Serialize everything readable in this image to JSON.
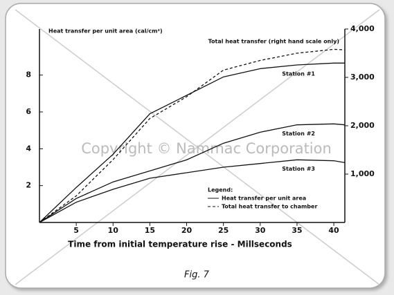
{
  "chart_data": {
    "type": "line",
    "y_label": "Heat transfer per unit area (cal/cm²)",
    "x_label": "Time from initial temperature rise - Millseconds",
    "caption": "Fig. 7",
    "watermark": "Copyright © Nammac Corporation",
    "x": [
      0,
      5,
      10,
      15,
      20,
      25,
      30,
      35,
      40,
      41.5
    ],
    "series": [
      {
        "name": "Station #1",
        "color": "#111111",
        "dash": "solid",
        "values": [
          0,
          1.9,
          3.7,
          5.9,
          6.9,
          7.9,
          8.35,
          8.55,
          8.65,
          8.65
        ]
      },
      {
        "name": "Total heat transfer (right hand scale only)",
        "color": "#111111",
        "dash": "dashed",
        "axis": "y2",
        "values": [
          0,
          550,
          1300,
          2150,
          2600,
          3150,
          3350,
          3500,
          3580,
          3570
        ]
      },
      {
        "name": "Station #2",
        "color": "#111111",
        "dash": "solid",
        "values": [
          0,
          1.3,
          2.2,
          2.8,
          3.4,
          4.3,
          4.9,
          5.3,
          5.35,
          5.3
        ]
      },
      {
        "name": "Station #3",
        "color": "#111111",
        "dash": "solid",
        "values": [
          0,
          1.1,
          1.8,
          2.4,
          2.7,
          3.0,
          3.2,
          3.4,
          3.35,
          3.25
        ]
      }
    ],
    "legend": {
      "title": "Legend:",
      "entries": [
        {
          "label": "Heat transfer per unit area",
          "dash": "solid"
        },
        {
          "label": "Total heat transfer to chamber",
          "dash": "dashed"
        }
      ]
    },
    "xlim": [
      0,
      41.5
    ],
    "xticks": [
      5,
      10,
      15,
      20,
      25,
      30,
      35,
      40
    ],
    "ylim": [
      0,
      10.5
    ],
    "yticks": [
      2,
      4,
      6,
      8
    ],
    "y2lim": [
      0,
      4000
    ],
    "y2ticks": [
      {
        "value": 1000,
        "label": "1,000"
      },
      {
        "value": 2000,
        "label": "2,000"
      },
      {
        "value": 3000,
        "label": "3,000"
      },
      {
        "value": 4000,
        "label": "4,000"
      }
    ]
  }
}
